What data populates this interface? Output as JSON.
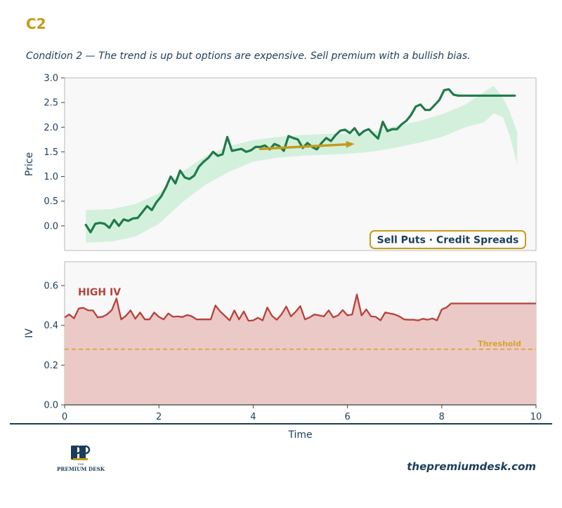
{
  "header": {
    "code": "C2",
    "subtitle": "Condition 2 — The trend is up but options are expensive. Sell premium with a bullish bias."
  },
  "colors": {
    "gold": "#c49a1a",
    "navy": "#1c3d5a",
    "price_line": "#1f7a48",
    "price_band": "#d3f0dd",
    "iv_line": "#b8413a",
    "iv_fill": "#ebc9c6",
    "threshold": "#d9a22c",
    "arrow": "#c49a1a",
    "panel_bg": "#f8f8f8",
    "panel_border": "#cfcfcf"
  },
  "chart_data": [
    {
      "type": "line",
      "panel": "price",
      "ylabel": "Price",
      "xlim": [
        0,
        10
      ],
      "ylim": [
        -0.5,
        3.0
      ],
      "yticks": [
        "0.0",
        "0.5",
        "1.0",
        "1.5",
        "2.0",
        "2.5",
        "3.0"
      ],
      "x": [
        0.45,
        0.55,
        0.65,
        0.75,
        0.85,
        0.95,
        1.05,
        1.15,
        1.25,
        1.35,
        1.45,
        1.55,
        1.65,
        1.75,
        1.85,
        1.95,
        2.05,
        2.15,
        2.25,
        2.35,
        2.45,
        2.55,
        2.65,
        2.75,
        2.85,
        2.95,
        3.05,
        3.15,
        3.25,
        3.35,
        3.45,
        3.55,
        3.65,
        3.75,
        3.85,
        3.95,
        4.05,
        4.15,
        4.25,
        4.35,
        4.45,
        4.55,
        4.65,
        4.75,
        4.85,
        4.95,
        5.05,
        5.15,
        5.25,
        5.35,
        5.45,
        5.55,
        5.65,
        5.75,
        5.85,
        5.95,
        6.05,
        6.15,
        6.25,
        6.35,
        6.45,
        6.55,
        6.65,
        6.75,
        6.85,
        6.95,
        7.05,
        7.15,
        7.25,
        7.35,
        7.45,
        7.55,
        7.65,
        7.75,
        7.85,
        7.95,
        8.05,
        8.15,
        8.25,
        8.35,
        8.45,
        8.55,
        8.65,
        8.75,
        8.85,
        8.95,
        9.05,
        9.15,
        9.25,
        9.35,
        9.45,
        9.55
      ],
      "y": [
        0.02,
        -0.13,
        0.04,
        0.06,
        0.04,
        -0.04,
        0.12,
        0.0,
        0.13,
        0.1,
        0.15,
        0.16,
        0.28,
        0.4,
        0.32,
        0.48,
        0.6,
        0.78,
        1.0,
        0.86,
        1.12,
        0.98,
        0.95,
        1.02,
        1.2,
        1.3,
        1.38,
        1.5,
        1.42,
        1.45,
        1.8,
        1.52,
        1.54,
        1.56,
        1.5,
        1.53,
        1.6,
        1.6,
        1.63,
        1.55,
        1.66,
        1.62,
        1.52,
        1.82,
        1.78,
        1.75,
        1.58,
        1.68,
        1.6,
        1.55,
        1.68,
        1.78,
        1.72,
        1.84,
        1.93,
        1.95,
        1.88,
        1.98,
        1.84,
        1.92,
        1.96,
        1.86,
        1.77,
        2.11,
        1.92,
        1.96,
        1.96,
        2.06,
        2.13,
        2.25,
        2.42,
        2.46,
        2.35,
        2.35,
        2.45,
        2.55,
        2.75,
        2.77,
        2.66,
        2.64,
        2.64,
        2.64,
        2.64,
        2.64,
        2.64,
        2.64,
        2.64,
        2.64,
        2.64,
        2.64,
        2.64,
        2.64
      ],
      "band": {
        "x": [
          0.45,
          1.0,
          1.5,
          2.0,
          2.5,
          3.0,
          3.5,
          4.0,
          4.5,
          5.0,
          5.5,
          6.0,
          6.5,
          7.0,
          7.5,
          8.0,
          8.5,
          8.9,
          9.1,
          9.3,
          9.45,
          9.6
        ],
        "upper": [
          0.32,
          0.34,
          0.44,
          0.66,
          1.1,
          1.42,
          1.62,
          1.74,
          1.8,
          1.84,
          1.86,
          1.87,
          1.9,
          2.02,
          2.12,
          2.26,
          2.46,
          2.72,
          2.84,
          2.6,
          2.3,
          1.9
        ],
        "lower": [
          -0.34,
          -0.32,
          -0.22,
          0.04,
          0.48,
          0.84,
          1.1,
          1.3,
          1.38,
          1.42,
          1.44,
          1.46,
          1.5,
          1.58,
          1.68,
          1.8,
          2.0,
          2.1,
          2.28,
          2.2,
          1.8,
          1.24
        ]
      },
      "arrow": {
        "from": [
          4.15,
          1.56
        ],
        "to": [
          6.15,
          1.66
        ]
      },
      "badge": "Sell Puts · Credit Spreads"
    },
    {
      "type": "area",
      "panel": "iv",
      "ylabel": "IV",
      "xlabel": "Time",
      "xlim": [
        0,
        10
      ],
      "ylim": [
        0,
        0.72
      ],
      "yticks": [
        "0.0",
        "0.2",
        "0.4",
        "0.6"
      ],
      "xticks": [
        "0",
        "2",
        "4",
        "6",
        "8",
        "10"
      ],
      "x": [
        0.0,
        0.1,
        0.2,
        0.3,
        0.4,
        0.5,
        0.6,
        0.7,
        0.8,
        0.9,
        1.0,
        1.1,
        1.2,
        1.3,
        1.4,
        1.5,
        1.6,
        1.7,
        1.8,
        1.9,
        2.0,
        2.1,
        2.2,
        2.3,
        2.4,
        2.5,
        2.6,
        2.7,
        2.8,
        2.9,
        3.0,
        3.1,
        3.2,
        3.3,
        3.4,
        3.5,
        3.6,
        3.7,
        3.8,
        3.9,
        4.0,
        4.1,
        4.2,
        4.3,
        4.4,
        4.5,
        4.6,
        4.7,
        4.8,
        4.9,
        5.0,
        5.1,
        5.2,
        5.3,
        5.4,
        5.5,
        5.6,
        5.7,
        5.8,
        5.9,
        6.0,
        6.1,
        6.2,
        6.3,
        6.4,
        6.5,
        6.6,
        6.7,
        6.8,
        6.9,
        7.0,
        7.1,
        7.2,
        7.3,
        7.4,
        7.5,
        7.6,
        7.7,
        7.8,
        7.9,
        8.0,
        8.1,
        8.2,
        8.3,
        8.4,
        8.5,
        8.6,
        8.7,
        8.8,
        8.9,
        9.0,
        9.1,
        9.2,
        9.3,
        9.4,
        9.5,
        9.6,
        9.7,
        9.8,
        9.9,
        10.0
      ],
      "y": [
        0.44,
        0.455,
        0.435,
        0.485,
        0.488,
        0.475,
        0.475,
        0.44,
        0.443,
        0.455,
        0.477,
        0.535,
        0.43,
        0.448,
        0.475,
        0.433,
        0.465,
        0.43,
        0.43,
        0.465,
        0.443,
        0.43,
        0.46,
        0.443,
        0.445,
        0.442,
        0.452,
        0.445,
        0.43,
        0.43,
        0.43,
        0.43,
        0.5,
        0.47,
        0.448,
        0.425,
        0.475,
        0.43,
        0.47,
        0.423,
        0.425,
        0.438,
        0.425,
        0.49,
        0.448,
        0.428,
        0.455,
        0.495,
        0.445,
        0.468,
        0.497,
        0.43,
        0.44,
        0.455,
        0.45,
        0.445,
        0.475,
        0.44,
        0.45,
        0.477,
        0.45,
        0.455,
        0.555,
        0.45,
        0.48,
        0.445,
        0.443,
        0.425,
        0.465,
        0.46,
        0.455,
        0.445,
        0.43,
        0.428,
        0.428,
        0.425,
        0.433,
        0.428,
        0.435,
        0.425,
        0.48,
        0.49,
        0.51,
        0.51,
        0.51,
        0.51,
        0.51,
        0.51,
        0.51,
        0.51,
        0.51,
        0.51,
        0.51,
        0.51,
        0.51,
        0.51,
        0.51,
        0.51,
        0.51,
        0.51,
        0.51
      ],
      "threshold": 0.28,
      "threshold_label": "Threshold",
      "annotation": "HIGH IV"
    }
  ],
  "footer": {
    "logo_initials": "PD",
    "logo_line1": "THE",
    "logo_line2": "PREMIUM DESK",
    "website": "thepremiumdesk.com"
  }
}
